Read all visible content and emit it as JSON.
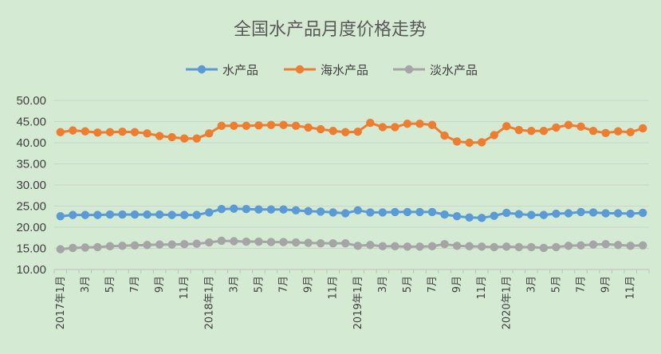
{
  "chart_data": {
    "type": "line",
    "title": "全国水产品月度价格走势",
    "xlabel": "",
    "ylabel": "",
    "ylim": [
      10,
      50
    ],
    "yticks": [
      "50.00",
      "45.00",
      "40.00",
      "35.00",
      "30.00",
      "25.00",
      "20.00",
      "15.00",
      "10.00"
    ],
    "grid": true,
    "legend_position": "top",
    "categories": [
      "2017年1月",
      "",
      "3月",
      "",
      "5月",
      "",
      "7月",
      "",
      "9月",
      "",
      "11月",
      "",
      "2018年1月",
      "",
      "3月",
      "",
      "5月",
      "",
      "7月",
      "",
      "9月",
      "",
      "11月",
      "",
      "2019年1月",
      "",
      "3月",
      "",
      "5月",
      "",
      "7月",
      "",
      "9月",
      "",
      "11月",
      "",
      "2020年1月",
      "",
      "3月",
      "",
      "5月",
      "",
      "7月",
      "",
      "9月",
      "",
      "11月",
      ""
    ],
    "series": [
      {
        "name": "水产品",
        "color": "#5b9bd5",
        "values": [
          22.6,
          22.9,
          22.9,
          22.9,
          23.0,
          23.0,
          23.0,
          23.0,
          23.0,
          22.9,
          22.9,
          22.9,
          23.5,
          24.3,
          24.4,
          24.3,
          24.2,
          24.2,
          24.2,
          24.0,
          23.8,
          23.7,
          23.5,
          23.3,
          24.0,
          23.5,
          23.5,
          23.6,
          23.6,
          23.6,
          23.6,
          23.0,
          22.6,
          22.3,
          22.2,
          22.7,
          23.4,
          23.1,
          22.9,
          22.9,
          23.2,
          23.3,
          23.6,
          23.5,
          23.3,
          23.3,
          23.2,
          23.4
        ]
      },
      {
        "name": "海水产品",
        "color": "#ed7d31",
        "values": [
          42.5,
          42.9,
          42.7,
          42.4,
          42.5,
          42.6,
          42.5,
          42.2,
          41.6,
          41.3,
          41.0,
          41.0,
          42.2,
          44.0,
          44.0,
          44.0,
          44.1,
          44.2,
          44.2,
          44.0,
          43.6,
          43.2,
          42.8,
          42.5,
          42.6,
          44.7,
          43.7,
          43.7,
          44.5,
          44.5,
          44.2,
          41.7,
          40.3,
          40.0,
          40.1,
          41.8,
          43.9,
          43.0,
          42.8,
          42.8,
          43.6,
          44.2,
          43.8,
          42.8,
          42.3,
          42.7,
          42.5,
          43.4
        ]
      },
      {
        "name": "淡水产品",
        "color": "#a5a5a5",
        "values": [
          14.8,
          15.1,
          15.2,
          15.3,
          15.5,
          15.6,
          15.7,
          15.8,
          15.9,
          15.9,
          16.0,
          16.1,
          16.4,
          16.8,
          16.7,
          16.6,
          16.6,
          16.5,
          16.5,
          16.4,
          16.3,
          16.2,
          16.2,
          16.2,
          15.6,
          15.8,
          15.5,
          15.5,
          15.4,
          15.4,
          15.5,
          16.0,
          15.6,
          15.5,
          15.4,
          15.3,
          15.4,
          15.3,
          15.3,
          15.1,
          15.3,
          15.6,
          15.7,
          15.9,
          16.0,
          15.8,
          15.6,
          15.7
        ]
      }
    ]
  }
}
